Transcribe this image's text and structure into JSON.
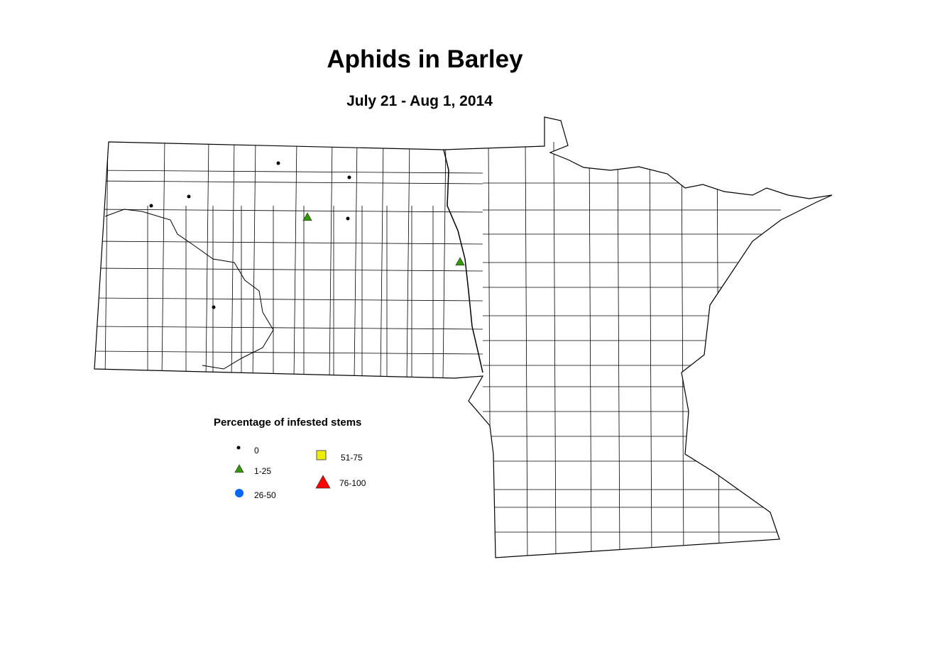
{
  "title": "Aphids in Barley",
  "subtitle": "July 21 - Aug 1, 2014",
  "legend": {
    "title": "Percentage of infested stems",
    "items": [
      {
        "label": "0",
        "symbol": "dot",
        "color": "#000000"
      },
      {
        "label": "1-25",
        "symbol": "triangle",
        "color": "#339900"
      },
      {
        "label": "26-50",
        "symbol": "circle",
        "color": "#0066ff"
      },
      {
        "label": "51-75",
        "symbol": "square",
        "color": "#eeee00"
      },
      {
        "label": "76-100",
        "symbol": "triangle",
        "color": "#ff0000"
      }
    ]
  },
  "map": {
    "regions": [
      "North Dakota",
      "Minnesota"
    ],
    "observations": [
      {
        "category": "0"
      },
      {
        "category": "0"
      },
      {
        "category": "0"
      },
      {
        "category": "0"
      },
      {
        "category": "0"
      },
      {
        "category": "0"
      },
      {
        "category": "1-25"
      },
      {
        "category": "1-25"
      }
    ]
  }
}
